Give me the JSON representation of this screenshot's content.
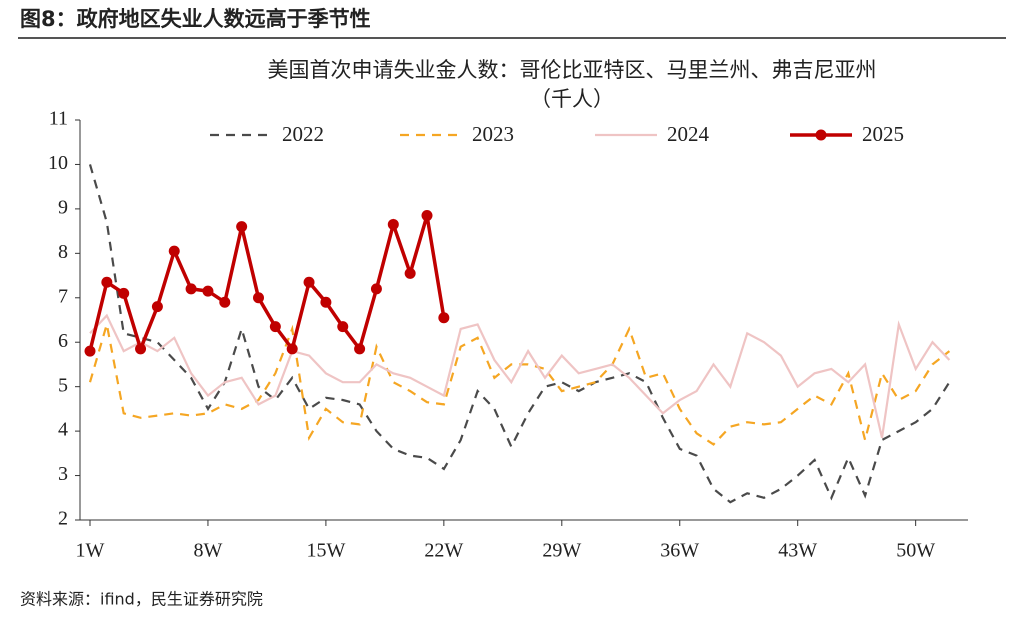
{
  "header": "图8：政府地区失业人数远高于季节性",
  "source": "资料来源：ifind，民生证券研究院",
  "chart_data": {
    "type": "line",
    "title": "美国首次申请失业金人数：哥伦比亚特区、马里兰州、弗吉尼亚州",
    "subtitle": "（千人）",
    "categories": [
      "1W",
      null,
      null,
      null,
      null,
      null,
      null,
      "8W",
      null,
      null,
      null,
      null,
      null,
      null,
      "15W",
      null,
      null,
      null,
      null,
      null,
      null,
      "22W",
      null,
      null,
      null,
      null,
      null,
      null,
      "29W",
      null,
      null,
      null,
      null,
      null,
      null,
      "36W",
      null,
      null,
      null,
      null,
      null,
      null,
      "43W",
      null,
      null,
      null,
      null,
      null,
      null,
      "50W",
      null,
      null
    ],
    "ylim": [
      2,
      11
    ],
    "yticks": [
      2,
      3,
      4,
      5,
      6,
      7,
      8,
      9,
      10,
      11
    ],
    "series": [
      {
        "name": "2022",
        "color": "#4a4a4a",
        "dash": true,
        "values": [
          10,
          8.7,
          6.2,
          6.1,
          6.0,
          5.6,
          5.2,
          4.5,
          5.1,
          6.3,
          5.0,
          4.7,
          5.2,
          4.5,
          4.75,
          4.7,
          4.6,
          4.0,
          3.6,
          3.45,
          3.4,
          3.15,
          3.8,
          4.9,
          4.5,
          3.65,
          4.4,
          5.0,
          5.1,
          4.9,
          5.1,
          5.2,
          5.3,
          5.1,
          4.3,
          3.6,
          3.45,
          2.7,
          2.4,
          2.6,
          2.5,
          2.7,
          3.0,
          3.35,
          2.5,
          3.4,
          2.55,
          3.8,
          4.0,
          4.2,
          4.5,
          5.1
        ]
      },
      {
        "name": "2023",
        "color": "#f5a623",
        "dash": true,
        "values": [
          5.1,
          6.4,
          4.4,
          4.3,
          4.35,
          4.4,
          4.35,
          4.4,
          4.6,
          4.5,
          4.7,
          5.3,
          6.3,
          3.85,
          4.5,
          4.2,
          4.15,
          5.9,
          5.1,
          4.9,
          4.65,
          4.6,
          5.9,
          6.1,
          5.2,
          5.5,
          5.5,
          5.4,
          4.9,
          5.0,
          5.1,
          5.5,
          6.3,
          5.2,
          5.3,
          4.5,
          3.95,
          3.7,
          4.1,
          4.2,
          4.15,
          4.2,
          4.5,
          4.8,
          4.6,
          5.3,
          3.8,
          5.3,
          4.7,
          4.9,
          5.5,
          5.8
        ]
      },
      {
        "name": "2024",
        "color": "#efc4c4",
        "dash": false,
        "values": [
          6.2,
          6.6,
          5.8,
          6.0,
          5.8,
          6.1,
          5.3,
          4.8,
          5.1,
          5.2,
          4.6,
          4.8,
          5.8,
          5.7,
          5.3,
          5.1,
          5.1,
          5.5,
          5.3,
          5.2,
          5.0,
          4.8,
          6.3,
          6.4,
          5.6,
          5.1,
          5.8,
          5.2,
          5.7,
          5.3,
          5.4,
          5.5,
          5.2,
          4.8,
          4.4,
          4.7,
          4.9,
          5.5,
          5.0,
          6.2,
          6.0,
          5.7,
          5.0,
          5.3,
          5.4,
          5.1,
          5.5,
          3.85,
          6.4,
          5.4,
          6.0,
          5.6
        ]
      },
      {
        "name": "2025",
        "color": "#c00000",
        "dash": false,
        "markers": true,
        "values": [
          5.8,
          7.35,
          7.1,
          5.85,
          6.8,
          8.05,
          7.2,
          7.15,
          6.9,
          8.6,
          7.0,
          6.35,
          5.85,
          7.35,
          6.9,
          6.35,
          5.85,
          7.2,
          8.65,
          7.55,
          8.85,
          6.55,
          null,
          null,
          null,
          null,
          null,
          null,
          null,
          null,
          null,
          null,
          null,
          null,
          null,
          null,
          null,
          null,
          null,
          null,
          null,
          null,
          null,
          null,
          null,
          null,
          null,
          null,
          null,
          null,
          null,
          null
        ]
      }
    ]
  }
}
